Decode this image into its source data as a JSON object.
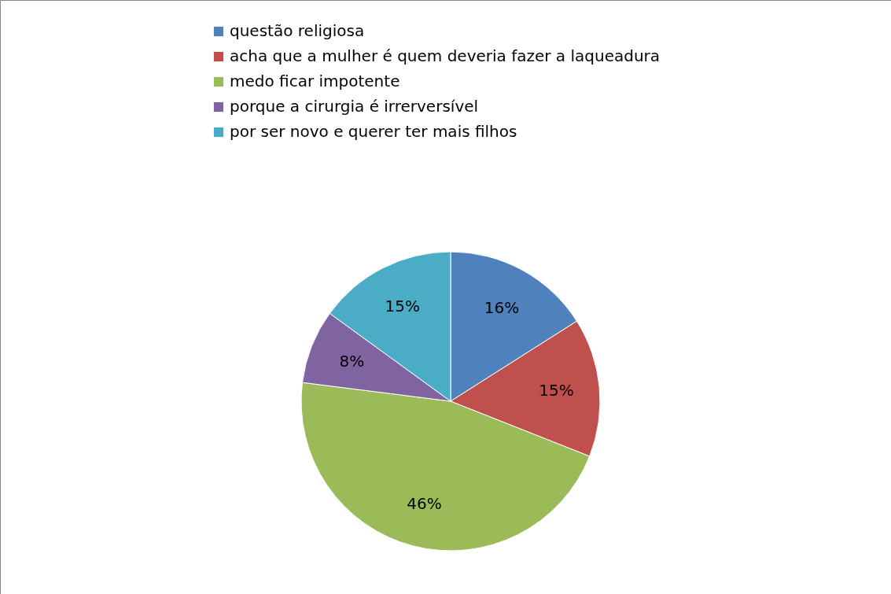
{
  "chart_data": {
    "type": "pie",
    "categories": [
      "questão religiosa",
      "acha que a mulher é quem deveria fazer a laqueadura",
      "medo ficar impotente",
      "porque  a cirurgia é irrerversível",
      "por ser novo e querer ter mais filhos"
    ],
    "values": [
      16,
      15,
      46,
      8,
      15
    ],
    "value_labels": [
      "16%",
      "15%",
      "46%",
      "8%",
      "15%"
    ],
    "colors": [
      "#4f81bd",
      "#c0504d",
      "#9bbb59",
      "#8064a2",
      "#4bacc6"
    ],
    "legend": "top"
  }
}
